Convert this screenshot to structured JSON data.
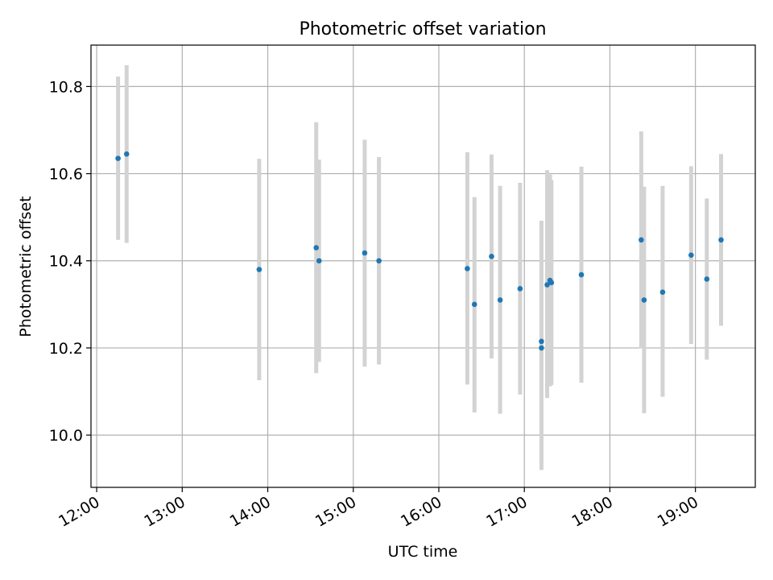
{
  "colors": {
    "marker": "#1f77b4",
    "errorbar": "#d3d3d3",
    "grid": "#b0b0b0",
    "axes": "#000000"
  },
  "chart_data": {
    "type": "scatter",
    "title": "Photometric offset variation",
    "xlabel": "UTC time",
    "ylabel": "Photometric offset",
    "xlim": [
      "11:56",
      "19:42"
    ],
    "ylim": [
      9.88,
      10.895
    ],
    "x_ticks": [
      "12:00",
      "13:00",
      "14:00",
      "15:00",
      "16:00",
      "17:00",
      "18:00",
      "19:00"
    ],
    "y_ticks": [
      10.0,
      10.2,
      10.4,
      10.6,
      10.8
    ],
    "y_tick_labels": [
      "10.0",
      "10.2",
      "10.4",
      "10.6",
      "10.8"
    ],
    "grid": true,
    "marker_style": "point with vertical error bar",
    "points": [
      {
        "time": "12:15",
        "y": 10.635,
        "err_low": 10.448,
        "err_high": 10.823
      },
      {
        "time": "12:21",
        "y": 10.645,
        "err_low": 10.441,
        "err_high": 10.849
      },
      {
        "time": "13:54",
        "y": 10.38,
        "err_low": 10.126,
        "err_high": 10.634
      },
      {
        "time": "14:34",
        "y": 10.43,
        "err_low": 10.142,
        "err_high": 10.718
      },
      {
        "time": "14:36",
        "y": 10.4,
        "err_low": 10.168,
        "err_high": 10.632
      },
      {
        "time": "15:08",
        "y": 10.418,
        "err_low": 10.157,
        "err_high": 10.678
      },
      {
        "time": "15:18",
        "y": 10.4,
        "err_low": 10.162,
        "err_high": 10.638
      },
      {
        "time": "16:20",
        "y": 10.382,
        "err_low": 10.116,
        "err_high": 10.649
      },
      {
        "time": "16:25",
        "y": 10.3,
        "err_low": 10.052,
        "err_high": 10.546
      },
      {
        "time": "16:37",
        "y": 10.41,
        "err_low": 10.176,
        "err_high": 10.644
      },
      {
        "time": "16:43",
        "y": 10.31,
        "err_low": 10.049,
        "err_high": 10.572
      },
      {
        "time": "16:57",
        "y": 10.336,
        "err_low": 10.093,
        "err_high": 10.579
      },
      {
        "time": "17:12",
        "y": 10.215,
        "err_low": 9.938,
        "err_high": 10.492
      },
      {
        "time": "17:12",
        "y": 10.2,
        "err_low": 9.92,
        "err_high": 10.48
      },
      {
        "time": "17:16",
        "y": 10.345,
        "err_low": 10.085,
        "err_high": 10.608
      },
      {
        "time": "17:18",
        "y": 10.355,
        "err_low": 10.112,
        "err_high": 10.598
      },
      {
        "time": "17:19",
        "y": 10.35,
        "err_low": 10.115,
        "err_high": 10.585
      },
      {
        "time": "17:40",
        "y": 10.368,
        "err_low": 10.12,
        "err_high": 10.616
      },
      {
        "time": "18:22",
        "y": 10.448,
        "err_low": 10.199,
        "err_high": 10.697
      },
      {
        "time": "18:24",
        "y": 10.31,
        "err_low": 10.05,
        "err_high": 10.57
      },
      {
        "time": "18:37",
        "y": 10.328,
        "err_low": 10.088,
        "err_high": 10.572
      },
      {
        "time": "18:57",
        "y": 10.413,
        "err_low": 10.209,
        "err_high": 10.617
      },
      {
        "time": "19:08",
        "y": 10.358,
        "err_low": 10.173,
        "err_high": 10.543
      },
      {
        "time": "19:18",
        "y": 10.448,
        "err_low": 10.251,
        "err_high": 10.645
      }
    ]
  }
}
